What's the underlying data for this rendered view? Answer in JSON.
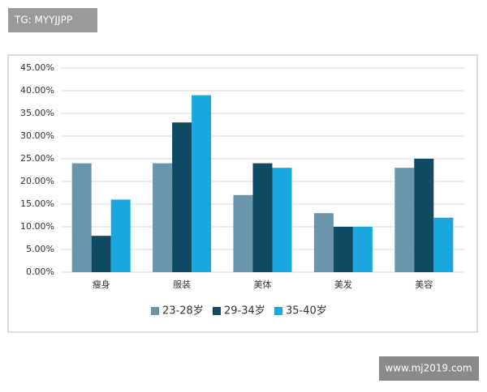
{
  "watermark_top": "TG: MYYJJPP",
  "watermark_bottom": "www.mj2019.com",
  "chart_data": {
    "type": "bar",
    "categories": [
      "瘦身",
      "服装",
      "美体",
      "美发",
      "美容"
    ],
    "series": [
      {
        "name": "23-28岁",
        "color": "#6b95ab",
        "values": [
          24,
          24,
          17,
          13,
          23
        ]
      },
      {
        "name": "29-34岁",
        "color": "#0f4a62",
        "values": [
          8,
          33,
          24,
          10,
          25
        ]
      },
      {
        "name": "35-40岁",
        "color": "#1aa7de",
        "values": [
          16,
          39,
          23,
          10,
          12
        ]
      }
    ],
    "ylim": [
      0,
      45
    ],
    "yticks": [
      {
        "value": 0,
        "label": "0.00%"
      },
      {
        "value": 5,
        "label": "5.00%"
      },
      {
        "value": 10,
        "label": "10.00%"
      },
      {
        "value": 15,
        "label": "15.00%"
      },
      {
        "value": 20,
        "label": "20.00%"
      },
      {
        "value": 25,
        "label": "25.00%"
      },
      {
        "value": 30,
        "label": "30.00%"
      },
      {
        "value": 35,
        "label": "35.00%"
      },
      {
        "value": 40,
        "label": "40.00%"
      },
      {
        "value": 45,
        "label": "45.00%"
      }
    ],
    "grid": true,
    "legend": "bottom"
  }
}
